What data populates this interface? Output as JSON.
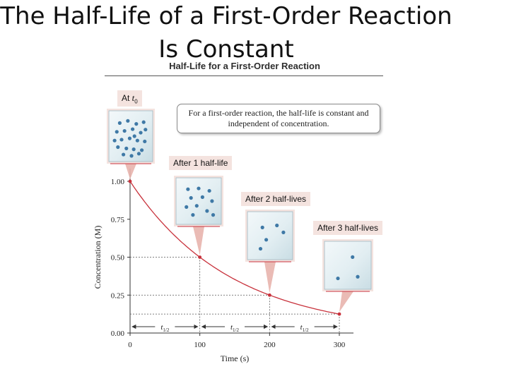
{
  "slide": {
    "title_line1": "The Half-Life of a First-Order Reaction",
    "title_line2": "Is Constant"
  },
  "figure": {
    "header": "Half-Life for a First-Order Reaction",
    "note": "For a first-order reaction, the half-life is constant and independent of concentration."
  },
  "stages": [
    {
      "label_prefix": "At ",
      "label_var": "t",
      "label_sub": "0",
      "particles": 22
    },
    {
      "label": "After 1 half-life",
      "particles": 11
    },
    {
      "label": "After 2 half-lives",
      "particles": 5
    },
    {
      "label": "After 3 half-lives",
      "particles": 3
    }
  ],
  "chart_data": {
    "type": "line",
    "xlabel": "Time (s)",
    "ylabel": "Concentration (M)",
    "xlim": [
      0,
      300
    ],
    "ylim": [
      0,
      1.0
    ],
    "x_ticks": [
      "0",
      "100",
      "200",
      "300"
    ],
    "y_ticks": [
      "0.00",
      "0.25",
      "0.50",
      "0.75",
      "1.00"
    ],
    "series": [
      {
        "x": [
          0,
          100,
          200,
          300
        ],
        "y": [
          1.0,
          0.5,
          0.25,
          0.125
        ]
      }
    ],
    "half_life_label": "t",
    "half_life_sub": "1/2",
    "half_life_count": 3,
    "colors": {
      "curve": "#c8323c",
      "pointer": "#e8b4ad",
      "particle": "#3f79a6",
      "guide": "#555555"
    }
  }
}
